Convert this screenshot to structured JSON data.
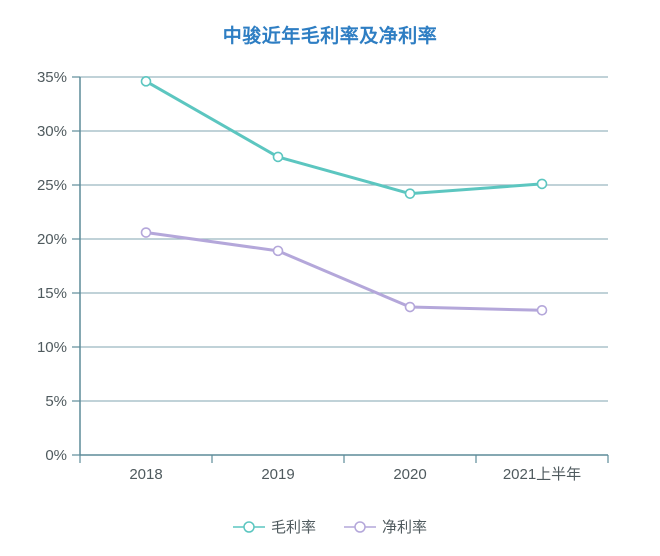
{
  "title": "中骏近年毛利率及净利率",
  "colors": {
    "title": "#2e7ec3",
    "axis": "#5d8b99",
    "grid": "#9ab7c0",
    "tick_label": "#4f5a5e",
    "background": "#ffffff",
    "gross_margin_line": "#5cc6c0",
    "net_margin_line": "#b4a7da"
  },
  "chart_data": {
    "type": "line",
    "title": "中骏近年毛利率及净利率",
    "categories": [
      "2018",
      "2019",
      "2020",
      "2021上半年"
    ],
    "series": [
      {
        "name": "毛利率",
        "color": "#5cc6c0",
        "values": [
          34.6,
          27.6,
          24.2,
          25.1
        ]
      },
      {
        "name": "净利率",
        "color": "#b4a7da",
        "values": [
          20.6,
          18.9,
          13.7,
          13.4
        ]
      }
    ],
    "xlabel": "",
    "ylabel": "",
    "ylim": [
      0,
      35
    ],
    "y_tick_step": 5,
    "y_tick_labels": [
      "0%",
      "5%",
      "10%",
      "15%",
      "20%",
      "25%",
      "30%",
      "35%"
    ],
    "grid": true,
    "marker": "hollow-circle",
    "legend_position": "bottom",
    "legend": [
      "毛利率",
      "净利率"
    ]
  }
}
